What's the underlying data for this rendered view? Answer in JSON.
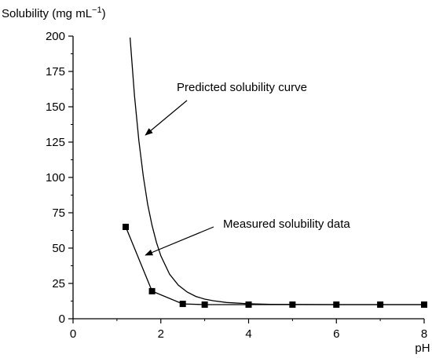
{
  "chart_data": {
    "type": "scatter",
    "title": "",
    "xlabel": "pH",
    "ylabel": "Solubility (mg mL",
    "ylabel_sup": "−1",
    "ylabel_close": ")",
    "xlim": [
      0,
      8
    ],
    "ylim": [
      0,
      200
    ],
    "x_ticks": [
      0,
      2,
      4,
      6,
      8
    ],
    "x_tick_labels": [
      "0",
      "2",
      "4",
      "6",
      "8"
    ],
    "y_ticks": [
      0,
      25,
      50,
      75,
      100,
      125,
      150,
      175,
      200
    ],
    "y_tick_labels": [
      "0",
      "25",
      "50",
      "75",
      "100",
      "125",
      "150",
      "175",
      "200"
    ],
    "grid": false,
    "legend": "none",
    "series": [
      {
        "kind": "line",
        "x": [
          1.3,
          1.4,
          1.5,
          1.6,
          1.7,
          1.8,
          1.9,
          2.0,
          2.2,
          2.4,
          2.6,
          2.8,
          3.0,
          3.2,
          3.5,
          4.0,
          4.5,
          5.0,
          6.0,
          7.0,
          8.0
        ],
        "y": [
          199,
          158,
          126,
          101,
          81,
          66,
          54,
          44.5,
          31.5,
          23.7,
          18.9,
          15.8,
          13.9,
          12.7,
          11.5,
          10.6,
          10.2,
          10.1,
          10.0,
          10.0,
          10.0
        ]
      },
      {
        "kind": "line+markers",
        "marker": "square",
        "x": [
          1.2,
          1.8,
          2.5,
          3.0,
          4.0,
          5.0,
          6.0,
          7.0,
          8.0
        ],
        "y": [
          65,
          19.5,
          10.5,
          10,
          10,
          10,
          10,
          10,
          10
        ]
      }
    ],
    "annotations": [
      {
        "text": "Predicted solubility curve",
        "arrow_to_x": 1.65,
        "arrow_to_y": 130
      },
      {
        "text": "Measured solubility data",
        "arrow_to_x": 1.65,
        "arrow_to_y": 45
      }
    ]
  }
}
